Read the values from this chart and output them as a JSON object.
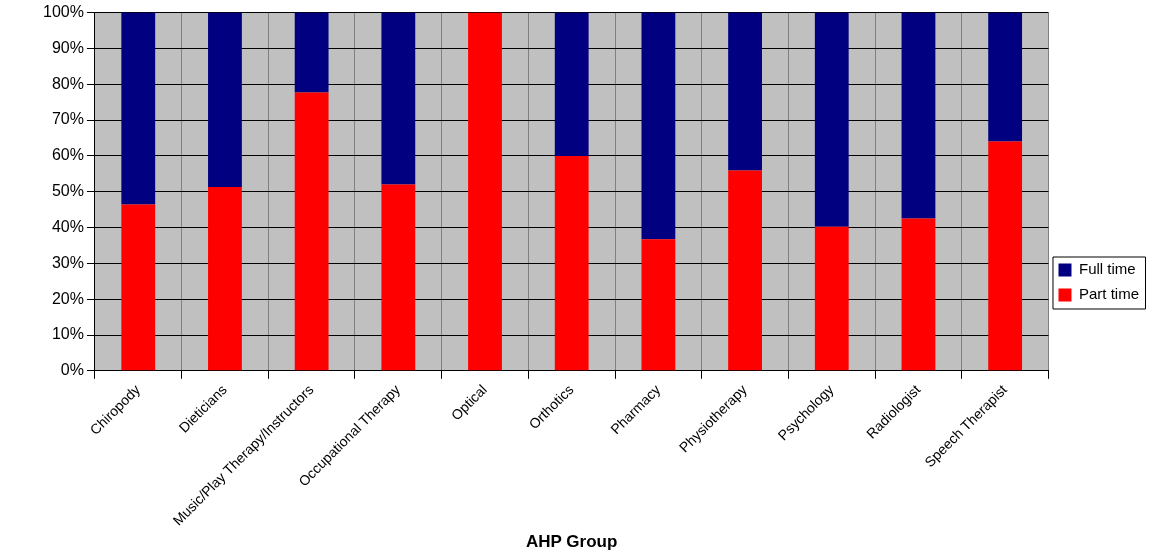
{
  "chart_data": {
    "type": "bar",
    "stacked": true,
    "xlabel": "AHP Group",
    "categories": [
      "Chiropody",
      "Dieticians",
      "Music/Play Therapy/Instructors",
      "Occupational Therapy",
      "Optical",
      "Orthotics",
      "Pharmacy",
      "Physiotherapy",
      "Psychology",
      "Radiologist",
      "Speech Therapist"
    ],
    "series": [
      {
        "name": "Part time",
        "color": "#ff0000",
        "values": [
          46.4,
          51.3,
          77.7,
          52.0,
          100,
          60,
          36.7,
          55.9,
          40.2,
          42.5,
          64.0
        ]
      },
      {
        "name": "Full time",
        "color": "#000080",
        "values": [
          53.6,
          48.7,
          22.3,
          48.0,
          0,
          40,
          63.3,
          44.1,
          59.8,
          57.5,
          36.0
        ]
      }
    ],
    "ylim": [
      0,
      100
    ],
    "yticks": [
      {
        "value": 0,
        "label": "0%"
      },
      {
        "value": 10,
        "label": "10%"
      },
      {
        "value": 20,
        "label": "20%"
      },
      {
        "value": 30,
        "label": "30%"
      },
      {
        "value": 40,
        "label": "40%"
      },
      {
        "value": 50,
        "label": "50%"
      },
      {
        "value": 60,
        "label": "60%"
      },
      {
        "value": 70,
        "label": "70%"
      },
      {
        "value": 80,
        "label": "80%"
      },
      {
        "value": 90,
        "label": "90%"
      },
      {
        "value": 100,
        "label": "100%"
      }
    ],
    "grid": true,
    "legend": "right"
  }
}
